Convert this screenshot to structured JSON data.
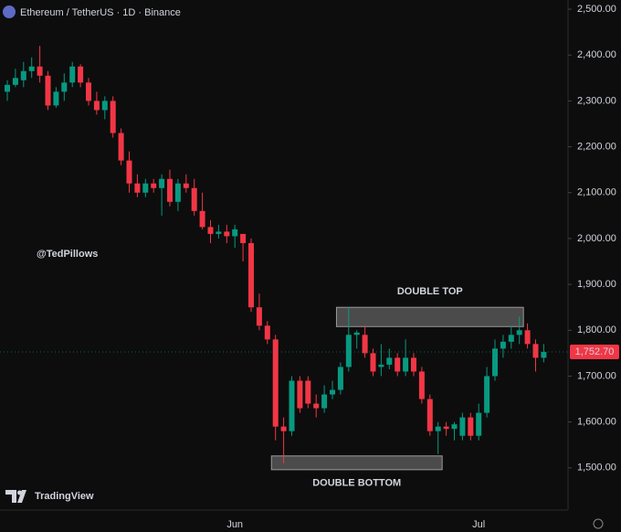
{
  "chart_data": {
    "type": "candlestick",
    "title": "Ethereum / TetherUS · 1D · Binance",
    "watermark": "@TedPillows",
    "brand": "TradingView",
    "categories": [
      null,
      null,
      null,
      null,
      null,
      null,
      null,
      null,
      null,
      null,
      null,
      null,
      null,
      null,
      null,
      null,
      null,
      null,
      null,
      null,
      null,
      null,
      null,
      null,
      null,
      null,
      null,
      null,
      "Jun",
      null,
      null,
      null,
      null,
      null,
      null,
      null,
      null,
      null,
      null,
      null,
      null,
      null,
      null,
      null,
      null,
      null,
      null,
      null,
      null,
      null,
      null,
      null,
      null,
      null,
      null,
      null,
      null,
      null,
      "Jul",
      null,
      null,
      null,
      null,
      null,
      null,
      null,
      null
    ],
    "open": [
      2320,
      2335,
      2345,
      2365,
      2375,
      2355,
      2290,
      2320,
      2340,
      2375,
      2340,
      2300,
      2280,
      2300,
      2230,
      2170,
      2120,
      2100,
      2120,
      2110,
      2130,
      2080,
      2120,
      2110,
      2060,
      2025,
      2010,
      2015,
      2005,
      2010,
      1990,
      1850,
      1810,
      1780,
      1590,
      1580,
      1690,
      1690,
      1640,
      1630,
      1660,
      1670,
      1720,
      1790,
      1790,
      1750,
      1720,
      1725,
      1740,
      1710,
      1740,
      1710,
      1650,
      1580,
      1590,
      1585,
      1570,
      1610,
      1570,
      1620,
      1700,
      1760,
      1775,
      1790,
      1800,
      1770,
      1740
    ],
    "high": [
      2345,
      2370,
      2385,
      2395,
      2420,
      2365,
      2330,
      2360,
      2385,
      2380,
      2350,
      2320,
      2310,
      2310,
      2240,
      2190,
      2140,
      2130,
      2130,
      2140,
      2150,
      2130,
      2140,
      2130,
      2100,
      2040,
      2030,
      2030,
      2030,
      2010,
      2000,
      1880,
      1820,
      1790,
      1610,
      1700,
      1700,
      1700,
      1660,
      1680,
      1690,
      1730,
      1850,
      1800,
      1810,
      1760,
      1770,
      1760,
      1750,
      1780,
      1750,
      1720,
      1660,
      1600,
      1600,
      1600,
      1620,
      1620,
      1640,
      1720,
      1780,
      1790,
      1810,
      1830,
      1815,
      1780,
      1770
    ],
    "low": [
      2300,
      2330,
      2330,
      2350,
      2340,
      2280,
      2285,
      2300,
      2330,
      2330,
      2290,
      2270,
      2260,
      2220,
      2160,
      2100,
      2090,
      2090,
      2100,
      2050,
      2070,
      2060,
      2100,
      2050,
      2020,
      1990,
      2000,
      1990,
      1980,
      1950,
      1840,
      1800,
      1770,
      1560,
      1510,
      1570,
      1620,
      1630,
      1610,
      1620,
      1650,
      1660,
      1710,
      1760,
      1740,
      1700,
      1700,
      1715,
      1700,
      1700,
      1700,
      1640,
      1570,
      1530,
      1570,
      1560,
      1560,
      1560,
      1560,
      1610,
      1690,
      1740,
      1760,
      1770,
      1760,
      1710,
      1730
    ],
    "close": [
      2335,
      2350,
      2365,
      2375,
      2355,
      2290,
      2320,
      2340,
      2375,
      2340,
      2300,
      2280,
      2300,
      2230,
      2170,
      2120,
      2100,
      2120,
      2110,
      2130,
      2080,
      2120,
      2110,
      2060,
      2025,
      2010,
      2015,
      2005,
      2020,
      1990,
      1850,
      1810,
      1780,
      1590,
      1580,
      1690,
      1630,
      1640,
      1630,
      1660,
      1670,
      1720,
      1790,
      1795,
      1750,
      1710,
      1725,
      1740,
      1710,
      1740,
      1710,
      1650,
      1580,
      1590,
      1585,
      1595,
      1610,
      1570,
      1620,
      1700,
      1760,
      1775,
      1790,
      1800,
      1770,
      1740,
      1752.7
    ],
    "up_color": "#089981",
    "down_color": "#f23645",
    "ylim": [
      1408,
      2520
    ],
    "yticks": [
      {
        "value": 1500,
        "label": "1,500.00"
      },
      {
        "value": 1600,
        "label": "1,600.00"
      },
      {
        "value": 1700,
        "label": "1,700.00"
      },
      {
        "value": 1800,
        "label": "1,800.00"
      },
      {
        "value": 1900,
        "label": "1,900.00"
      },
      {
        "value": 2000,
        "label": "2,000.00"
      },
      {
        "value": 2100,
        "label": "2,100.00"
      },
      {
        "value": 2200,
        "label": "2,200.00"
      },
      {
        "value": 2300,
        "label": "2,300.00"
      },
      {
        "value": 2400,
        "label": "2,400.00"
      },
      {
        "value": 2500,
        "label": "2,500.00"
      }
    ],
    "last_price": {
      "value": 1752.7,
      "label": "1,752.70"
    },
    "annotations": [
      {
        "text": "DOUBLE TOP",
        "range": [
          1808,
          1850
        ],
        "from": 41,
        "to": 63
      },
      {
        "text": "DOUBLE BOTTOM",
        "range": [
          1496,
          1526
        ],
        "from": 33,
        "to": 53
      }
    ]
  }
}
